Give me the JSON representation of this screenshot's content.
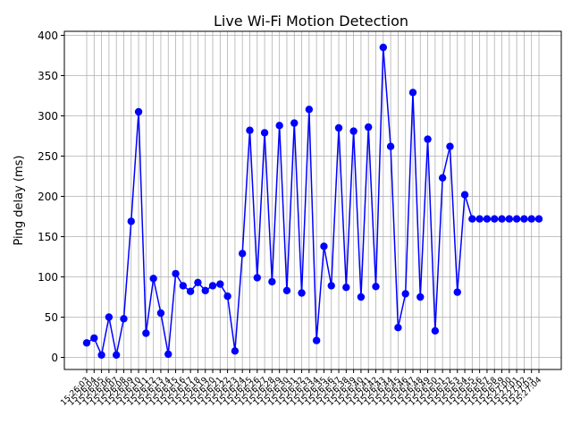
{
  "chart_data": {
    "type": "line",
    "title": "Live Wi-Fi Motion Detection",
    "xlabel": "",
    "ylabel": "Ping delay (ms)",
    "ylim": [
      -15,
      405
    ],
    "yticks": [
      0,
      50,
      100,
      150,
      200,
      250,
      300,
      350,
      400
    ],
    "grid": true,
    "legend": "none",
    "line_color": "#0000ff",
    "marker_color": "#0000ff",
    "x": [
      "15:26:03",
      "15:26:04",
      "15:26:05",
      "15:26:06",
      "15:26:07",
      "15:26:08",
      "15:26:09",
      "15:26:10",
      "15:26:11",
      "15:26:12",
      "15:26:13",
      "15:26:14",
      "15:26:15",
      "15:26:16",
      "15:26:17",
      "15:26:18",
      "15:26:19",
      "15:26:20",
      "15:26:21",
      "15:26:22",
      "15:26:23",
      "15:26:24",
      "15:26:25",
      "15:26:26",
      "15:26:27",
      "15:26:28",
      "15:26:29",
      "15:26:30",
      "15:26:31",
      "15:26:32",
      "15:26:33",
      "15:26:34",
      "15:26:35",
      "15:26:36",
      "15:26:37",
      "15:26:38",
      "15:26:39",
      "15:26:40",
      "15:26:41",
      "15:26:42",
      "15:26:43",
      "15:26:44",
      "15:26:45",
      "15:26:46",
      "15:26:47",
      "15:26:48",
      "15:26:49",
      "15:26:50",
      "15:26:51",
      "15:26:52",
      "15:26:53",
      "15:26:54",
      "15:26:55",
      "15:26:56",
      "15:26:57",
      "15:26:58",
      "15:26:59",
      "15:27:00",
      "15:27:01",
      "15:27:02",
      "15:27:03",
      "15:27:04"
    ],
    "values": [
      18,
      24,
      3,
      50,
      3,
      48,
      169,
      305,
      30,
      98,
      55,
      4,
      104,
      89,
      82,
      93,
      83,
      89,
      91,
      76,
      8,
      129,
      282,
      99,
      279,
      94,
      288,
      83,
      291,
      80,
      308,
      21,
      138,
      89,
      285,
      87,
      281,
      75,
      286,
      88,
      385,
      262,
      37,
      79,
      329,
      75,
      271,
      33,
      223,
      262,
      81,
      202,
      172,
      172,
      172,
      172,
      172,
      172,
      172,
      172,
      172,
      172
    ]
  }
}
